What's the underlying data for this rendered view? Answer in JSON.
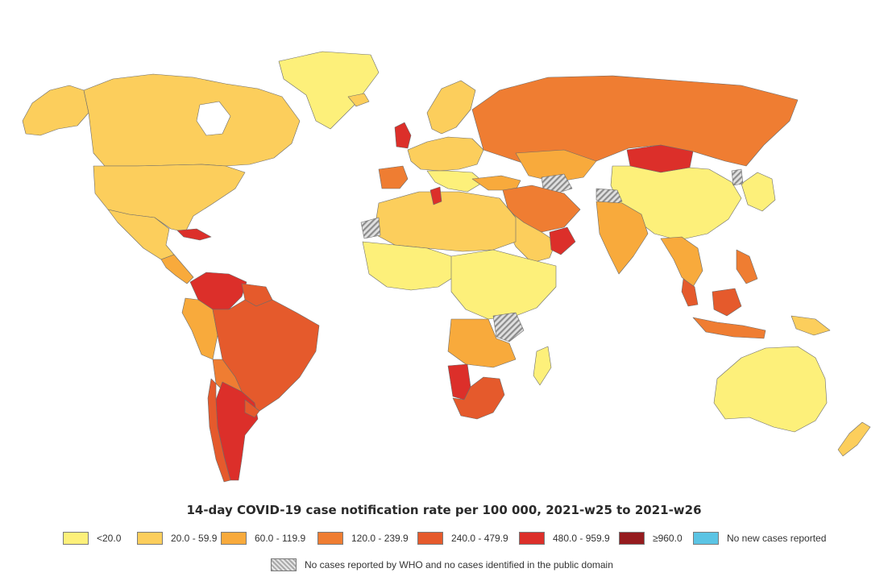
{
  "map": {
    "title": "14-day COVID-19 case notification rate per 100 000, 2021-w25 to 2021-w26",
    "colors": {
      "lt20": "#fdf07a",
      "c20_60": "#fcce5c",
      "c60_120": "#f8aa3c",
      "c120_240": "#ef7d32",
      "c240_480": "#e55a2c",
      "c480_960": "#dc2f2a",
      "ge960": "#951b1e",
      "no_new": "#5bc4e4",
      "no_data": "#bdbdbd"
    },
    "legend": {
      "items": [
        {
          "label": "<20.0",
          "color": "#fdf07a"
        },
        {
          "label": "20.0 - 59.9",
          "color": "#fcce5c"
        },
        {
          "label": "60.0 - 119.9",
          "color": "#f8aa3c"
        },
        {
          "label": "120.0 - 239.9",
          "color": "#ef7d32"
        },
        {
          "label": "240.0 - 479.9",
          "color": "#e55a2c"
        },
        {
          "label": "480.0 - 959.9",
          "color": "#dc2f2a"
        },
        {
          "label": "≥960.0",
          "color": "#951b1e"
        },
        {
          "label": "No new cases reported",
          "color": "#5bc4e4"
        }
      ],
      "hatch_label": "No cases reported by WHO and no cases identified in the public domain"
    }
  }
}
